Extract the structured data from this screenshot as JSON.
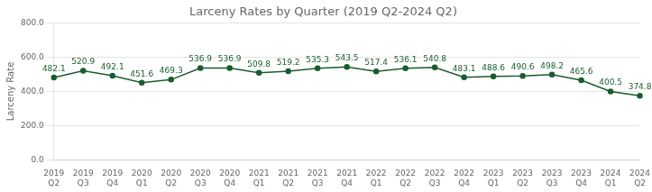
{
  "chart_data": {
    "type": "line",
    "title": "Larceny Rates by Quarter (2019 Q2-2024 Q2)",
    "ylabel": "Larceny Rate",
    "categories": [
      "2019\nQ2",
      "2019\nQ3",
      "2019\nQ4",
      "2020\nQ1",
      "2020\nQ2",
      "2020\nQ3",
      "2020\nQ4",
      "2021\nQ1",
      "2021\nQ2",
      "2021\nQ3",
      "2021\nQ4",
      "2022\nQ1",
      "2022\nQ2",
      "2022\nQ3",
      "2022\nQ4",
      "2023\nQ1",
      "2023\nQ2",
      "2023\nQ3",
      "2023\nQ4",
      "2024\nQ1",
      "2024\nQ2"
    ],
    "values": [
      482.1,
      520.9,
      492.1,
      451.6,
      469.3,
      536.9,
      536.9,
      509.8,
      519.2,
      535.3,
      543.5,
      517.4,
      536.1,
      540.8,
      483.1,
      488.6,
      490.6,
      498.2,
      465.6,
      400.5,
      374.8
    ],
    "color": "#1a5c2e",
    "marker": "circle",
    "ylim": [
      0.0,
      800.0
    ],
    "yticks": [
      {
        "value": 0,
        "label": "0.0"
      },
      {
        "value": 200,
        "label": "200.0"
      },
      {
        "value": 400,
        "label": "400.0"
      },
      {
        "value": 600,
        "label": "600.0"
      },
      {
        "value": 800,
        "label": "800.0"
      }
    ],
    "grid": true,
    "data_labels": true
  }
}
